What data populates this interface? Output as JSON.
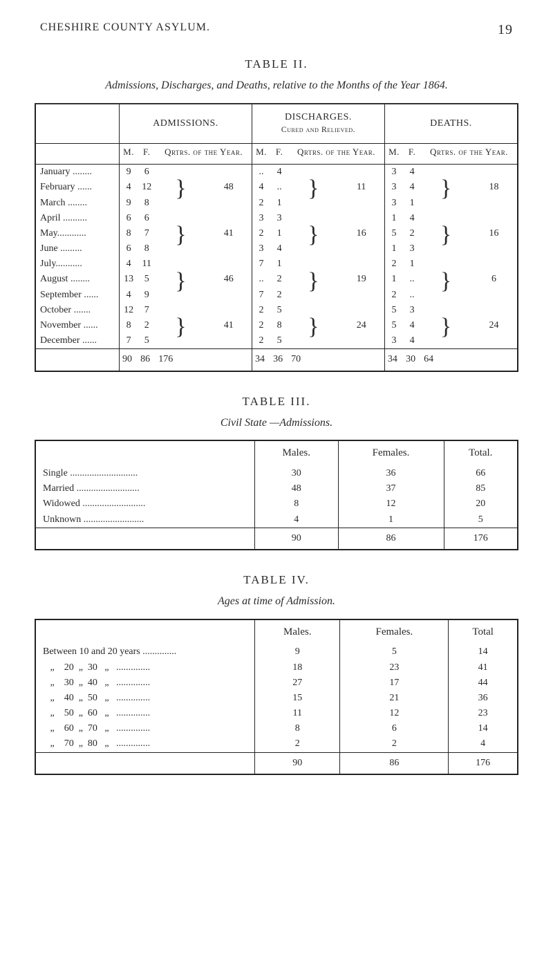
{
  "running_head": "CHESHIRE COUNTY ASYLUM.",
  "page_number": "19",
  "table2": {
    "title": "TABLE II.",
    "caption": "Admissions, Discharges, and Deaths, relative to the Months of the Year 1864.",
    "group_heads": [
      "ADMISSIONS.",
      "DISCHARGES.\nCured and Relieved.",
      "DEATHS."
    ],
    "sub_heads": [
      "M.",
      "F.",
      "Qrtrs. of the Year.",
      "M.",
      "F.",
      "Qrtrs. of the Year.",
      "M.",
      "F.",
      "Qrtrs. of the Year."
    ],
    "rows": [
      {
        "label": "January ........",
        "am": "9",
        "af": "6",
        "dm": "..",
        "df": "4",
        "hm": "3",
        "hf": "4"
      },
      {
        "label": "February ......",
        "am": "4",
        "af": "12",
        "dm": "4",
        "df": "..",
        "hm": "3",
        "hf": "4"
      },
      {
        "label": "March ........",
        "am": "9",
        "af": "8",
        "dm": "2",
        "df": "1",
        "hm": "3",
        "hf": "1"
      },
      {
        "label": "April ..........",
        "am": "6",
        "af": "6",
        "dm": "3",
        "df": "3",
        "hm": "1",
        "hf": "4"
      },
      {
        "label": "May............",
        "am": "8",
        "af": "7",
        "dm": "2",
        "df": "1",
        "hm": "5",
        "hf": "2"
      },
      {
        "label": "June .........",
        "am": "6",
        "af": "8",
        "dm": "3",
        "df": "4",
        "hm": "1",
        "hf": "3"
      },
      {
        "label": "July...........",
        "am": "4",
        "af": "11",
        "dm": "7",
        "df": "1",
        "hm": "2",
        "hf": "1"
      },
      {
        "label": "August ........",
        "am": "13",
        "af": "5",
        "dm": "..",
        "df": "2",
        "hm": "1",
        "hf": ".."
      },
      {
        "label": "September ......",
        "am": "4",
        "af": "9",
        "dm": "7",
        "df": "2",
        "hm": "2",
        "hf": ".."
      },
      {
        "label": "October .......",
        "am": "12",
        "af": "7",
        "dm": "2",
        "df": "5",
        "hm": "5",
        "hf": "3"
      },
      {
        "label": "November ......",
        "am": "8",
        "af": "2",
        "dm": "2",
        "df": "8",
        "hm": "5",
        "hf": "4"
      },
      {
        "label": "December ......",
        "am": "7",
        "af": "5",
        "dm": "2",
        "df": "5",
        "hm": "3",
        "hf": "4"
      }
    ],
    "quarters": {
      "admissions": [
        "48",
        "41",
        "46",
        "41"
      ],
      "discharges": [
        "11",
        "16",
        "19",
        "24"
      ],
      "deaths": [
        "18",
        "16",
        "6",
        "24"
      ]
    },
    "totals": {
      "am": "90",
      "af": "86",
      "aq": "176",
      "dm": "34",
      "df": "36",
      "dq": "70",
      "hm": "34",
      "hf": "30",
      "hq": "64"
    }
  },
  "table3": {
    "title": "TABLE III.",
    "caption": "Civil State —Admissions.",
    "heads": [
      "Males.",
      "Females.",
      "Total."
    ],
    "rows": [
      {
        "label": "Single ............................",
        "m": "30",
        "f": "36",
        "t": "66"
      },
      {
        "label": "Married ..........................",
        "m": "48",
        "f": "37",
        "t": "85"
      },
      {
        "label": "Widowed ..........................",
        "m": "8",
        "f": "12",
        "t": "20"
      },
      {
        "label": "Unknown .........................",
        "m": "4",
        "f": "1",
        "t": "5"
      }
    ],
    "totals": {
      "m": "90",
      "f": "86",
      "t": "176"
    }
  },
  "table4": {
    "title": "TABLE IV.",
    "caption": "Ages at time of Admission.",
    "heads": [
      "Males.",
      "Females.",
      "Total"
    ],
    "rows": [
      {
        "label": "Between 10 and 20 years ..............",
        "m": "9",
        "f": "5",
        "t": "14"
      },
      {
        "label": "   „    20  „  30   „   ..............",
        "m": "18",
        "f": "23",
        "t": "41"
      },
      {
        "label": "   „    30  „  40   „   ..............",
        "m": "27",
        "f": "17",
        "t": "44"
      },
      {
        "label": "   „    40  „  50   „   ..............",
        "m": "15",
        "f": "21",
        "t": "36"
      },
      {
        "label": "   „    50  „  60   „   ..............",
        "m": "11",
        "f": "12",
        "t": "23"
      },
      {
        "label": "   „    60  „  70   „   ..............",
        "m": "8",
        "f": "6",
        "t": "14"
      },
      {
        "label": "   „    70  „  80   „   ..............",
        "m": "2",
        "f": "2",
        "t": "4"
      }
    ],
    "totals": {
      "m": "90",
      "f": "86",
      "t": "176"
    }
  }
}
